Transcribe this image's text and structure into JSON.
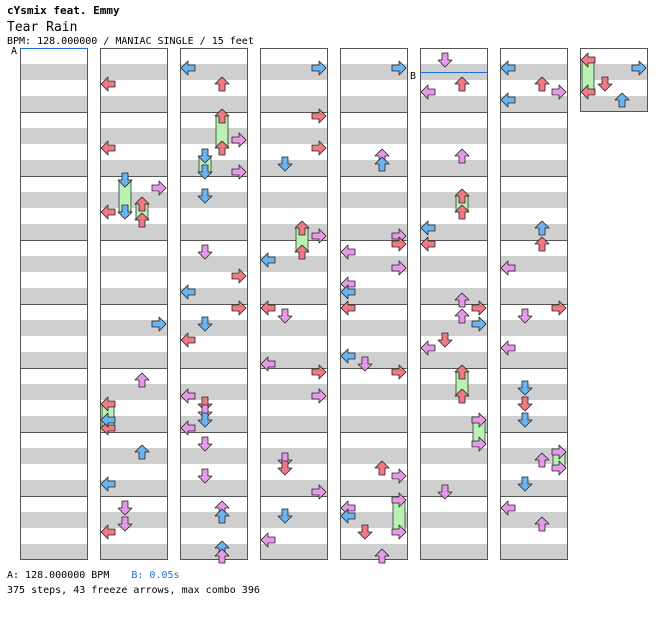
{
  "header": {
    "artist": "cYsmix feat. Emmy",
    "title": "Tear Rain",
    "info": "BPM: 128.000000 / MANIAC SINGLE / 15 feet"
  },
  "markers": {
    "a": "A",
    "b": "B"
  },
  "footer": {
    "bpm_label": "A: 128.000000 BPM",
    "stop_label": "B: 0.05s",
    "stats": "375 steps, 43 freeze arrows, max combo 396"
  },
  "colors": {
    "red_arrow": "#f07a84",
    "blue_arrow": "#6cb2ef",
    "pink_arrow": "#e59ae8",
    "freeze": "#b9f2b3",
    "stripe": "#cfcfcf"
  },
  "chart_data": {
    "type": "step-chart",
    "lanes": [
      "left",
      "down",
      "up",
      "right"
    ],
    "columns": 8,
    "measures_per_column": 8,
    "total_steps": 375,
    "freeze_arrows": 43,
    "max_combo": 396,
    "bpm": 128.0,
    "stop_seconds": 0.05
  }
}
